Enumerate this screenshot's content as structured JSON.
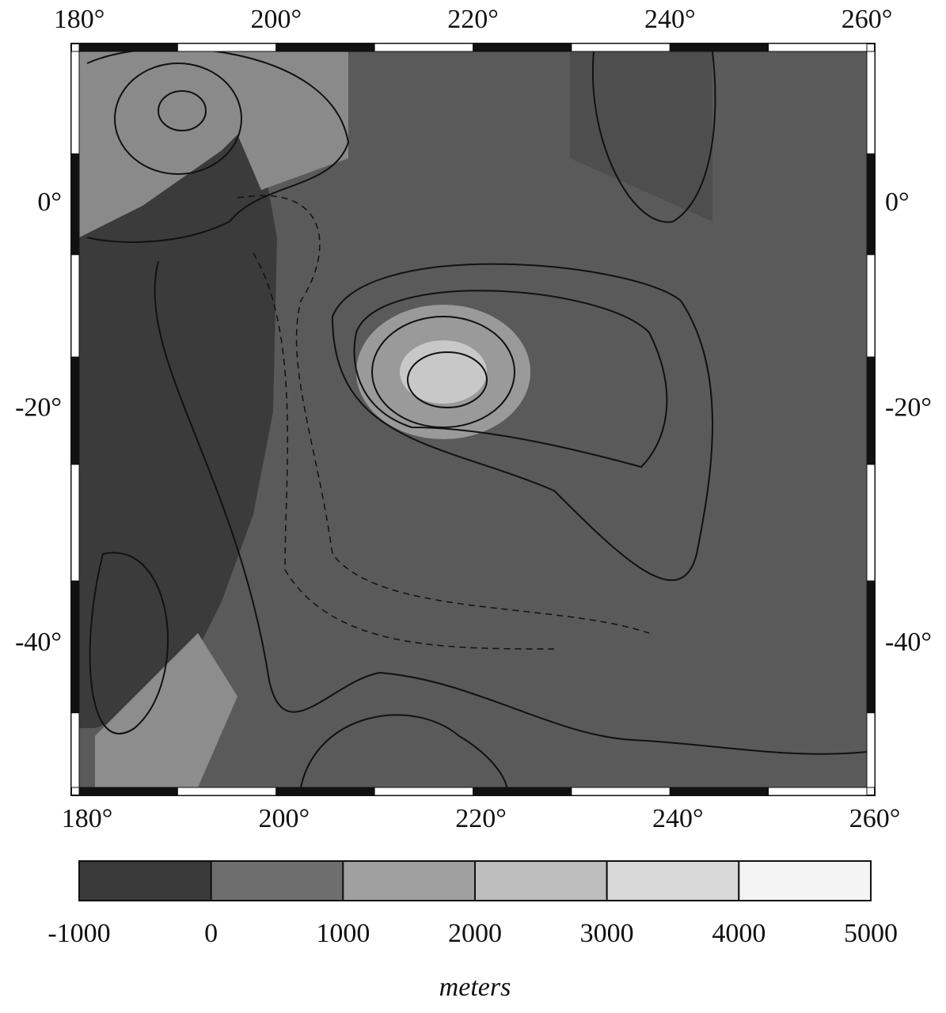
{
  "map": {
    "lonlim": [
      180,
      260
    ],
    "latlim": [
      -50,
      15
    ],
    "lon_ticks": [
      {
        "value": 180,
        "label": "180°"
      },
      {
        "value": 200,
        "label": "200°"
      },
      {
        "value": 220,
        "label": "220°"
      },
      {
        "value": 240,
        "label": "240°"
      },
      {
        "value": 260,
        "label": "260°"
      }
    ],
    "lat_ticks": [
      {
        "value": 0,
        "label": "0°"
      },
      {
        "value": -20,
        "label": "-20°"
      },
      {
        "value": -40,
        "label": "-40°"
      }
    ]
  },
  "colorbar": {
    "clim": [
      -1000,
      5000
    ],
    "ticks": [
      -1000,
      0,
      1000,
      2000,
      3000,
      4000,
      5000
    ],
    "colors": [
      "#3a3a3a",
      "#6e6e6e",
      "#a0a0a0",
      "#bdbdbd",
      "#d8d8d8",
      "#f4f4f4"
    ],
    "label": "meters"
  }
}
